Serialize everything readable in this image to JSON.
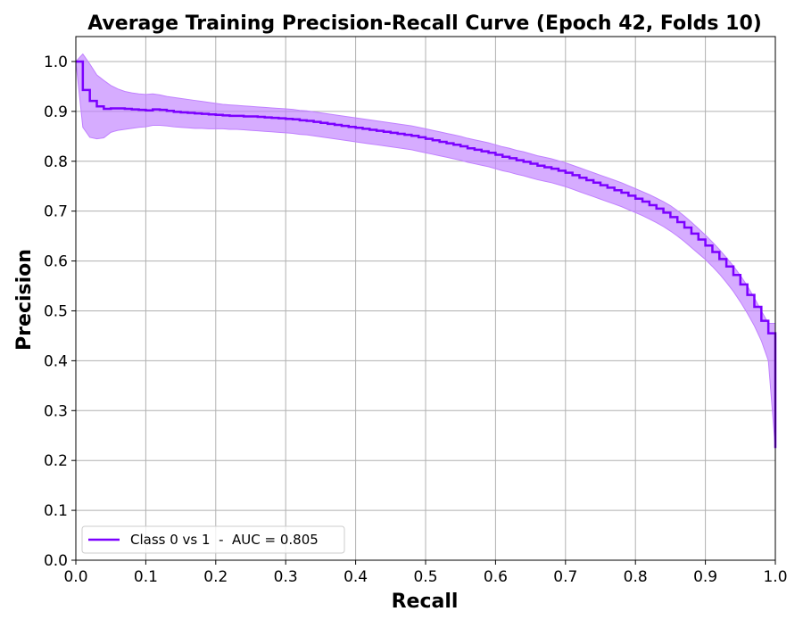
{
  "chart_data": {
    "type": "line",
    "title": "Average Training Precision-Recall Curve (Epoch 42, Folds 10)",
    "xlabel": "Recall",
    "ylabel": "Precision",
    "xlim": [
      0.0,
      1.0
    ],
    "ylim": [
      0.0,
      1.05
    ],
    "xticks": [
      0.0,
      0.1,
      0.2,
      0.3,
      0.4,
      0.5,
      0.6,
      0.7,
      0.8,
      0.9,
      1.0
    ],
    "yticks": [
      0.0,
      0.1,
      0.2,
      0.3,
      0.4,
      0.5,
      0.6,
      0.7,
      0.8,
      0.9,
      1.0
    ],
    "xtick_labels": [
      "0.0",
      "0.1",
      "0.2",
      "0.3",
      "0.4",
      "0.5",
      "0.6",
      "0.7",
      "0.8",
      "0.9",
      "1.0"
    ],
    "ytick_labels": [
      "0.0",
      "0.1",
      "0.2",
      "0.3",
      "0.4",
      "0.5",
      "0.6",
      "0.7",
      "0.8",
      "0.9",
      "1.0"
    ],
    "grid": true,
    "legend_position": "lower-left",
    "series": [
      {
        "name": "Class 0 vs 1  -  AUC = 0.805",
        "color": "#7b00ff",
        "band_color": "#c080ff",
        "step": true,
        "x": [
          0.0,
          0.01,
          0.02,
          0.03,
          0.04,
          0.05,
          0.06,
          0.07,
          0.08,
          0.09,
          0.1,
          0.11,
          0.12,
          0.13,
          0.14,
          0.15,
          0.16,
          0.17,
          0.18,
          0.19,
          0.2,
          0.21,
          0.22,
          0.23,
          0.24,
          0.25,
          0.26,
          0.27,
          0.28,
          0.29,
          0.3,
          0.31,
          0.32,
          0.33,
          0.34,
          0.35,
          0.36,
          0.37,
          0.38,
          0.39,
          0.4,
          0.41,
          0.42,
          0.43,
          0.44,
          0.45,
          0.46,
          0.47,
          0.48,
          0.49,
          0.5,
          0.51,
          0.52,
          0.53,
          0.54,
          0.55,
          0.56,
          0.57,
          0.58,
          0.59,
          0.6,
          0.61,
          0.62,
          0.63,
          0.64,
          0.65,
          0.66,
          0.67,
          0.68,
          0.69,
          0.7,
          0.71,
          0.72,
          0.73,
          0.74,
          0.75,
          0.76,
          0.77,
          0.78,
          0.79,
          0.8,
          0.81,
          0.82,
          0.83,
          0.84,
          0.85,
          0.86,
          0.87,
          0.88,
          0.89,
          0.9,
          0.91,
          0.92,
          0.93,
          0.94,
          0.95,
          0.96,
          0.97,
          0.98,
          0.99,
          1.0
        ],
        "y": [
          1.0,
          0.943,
          0.921,
          0.91,
          0.905,
          0.906,
          0.906,
          0.905,
          0.904,
          0.903,
          0.902,
          0.904,
          0.903,
          0.901,
          0.899,
          0.898,
          0.897,
          0.896,
          0.895,
          0.894,
          0.893,
          0.892,
          0.891,
          0.891,
          0.89,
          0.89,
          0.889,
          0.888,
          0.887,
          0.886,
          0.885,
          0.884,
          0.882,
          0.881,
          0.879,
          0.877,
          0.875,
          0.873,
          0.871,
          0.869,
          0.867,
          0.865,
          0.863,
          0.861,
          0.859,
          0.857,
          0.855,
          0.853,
          0.851,
          0.848,
          0.845,
          0.842,
          0.839,
          0.836,
          0.833,
          0.83,
          0.826,
          0.823,
          0.82,
          0.817,
          0.813,
          0.809,
          0.806,
          0.802,
          0.799,
          0.795,
          0.791,
          0.788,
          0.785,
          0.781,
          0.777,
          0.772,
          0.767,
          0.762,
          0.757,
          0.752,
          0.747,
          0.742,
          0.737,
          0.731,
          0.725,
          0.719,
          0.712,
          0.705,
          0.697,
          0.688,
          0.678,
          0.667,
          0.655,
          0.643,
          0.631,
          0.618,
          0.604,
          0.589,
          0.572,
          0.553,
          0.532,
          0.508,
          0.48,
          0.455,
          0.225
        ],
        "y_upper": [
          1.0,
          1.015,
          0.995,
          0.973,
          0.962,
          0.952,
          0.945,
          0.94,
          0.937,
          0.935,
          0.934,
          0.935,
          0.933,
          0.93,
          0.928,
          0.926,
          0.924,
          0.922,
          0.92,
          0.918,
          0.916,
          0.914,
          0.913,
          0.912,
          0.911,
          0.91,
          0.909,
          0.908,
          0.907,
          0.906,
          0.905,
          0.904,
          0.902,
          0.901,
          0.899,
          0.897,
          0.895,
          0.893,
          0.891,
          0.889,
          0.887,
          0.885,
          0.883,
          0.881,
          0.879,
          0.877,
          0.875,
          0.873,
          0.871,
          0.868,
          0.865,
          0.862,
          0.859,
          0.856,
          0.853,
          0.85,
          0.846,
          0.843,
          0.84,
          0.837,
          0.833,
          0.829,
          0.826,
          0.822,
          0.819,
          0.815,
          0.811,
          0.808,
          0.805,
          0.801,
          0.797,
          0.792,
          0.787,
          0.782,
          0.777,
          0.772,
          0.767,
          0.762,
          0.757,
          0.751,
          0.745,
          0.739,
          0.733,
          0.726,
          0.719,
          0.711,
          0.701,
          0.69,
          0.678,
          0.665,
          0.652,
          0.638,
          0.623,
          0.607,
          0.59,
          0.571,
          0.55,
          0.526,
          0.5,
          0.475,
          0.475
        ],
        "y_lower": [
          1.0,
          0.868,
          0.848,
          0.845,
          0.847,
          0.858,
          0.862,
          0.864,
          0.866,
          0.868,
          0.869,
          0.872,
          0.872,
          0.871,
          0.869,
          0.868,
          0.867,
          0.866,
          0.866,
          0.865,
          0.865,
          0.865,
          0.864,
          0.864,
          0.863,
          0.862,
          0.861,
          0.86,
          0.859,
          0.858,
          0.857,
          0.856,
          0.854,
          0.853,
          0.851,
          0.849,
          0.847,
          0.845,
          0.843,
          0.841,
          0.839,
          0.837,
          0.835,
          0.833,
          0.831,
          0.829,
          0.827,
          0.825,
          0.823,
          0.82,
          0.817,
          0.814,
          0.811,
          0.808,
          0.805,
          0.802,
          0.798,
          0.795,
          0.792,
          0.789,
          0.785,
          0.781,
          0.778,
          0.774,
          0.771,
          0.767,
          0.763,
          0.76,
          0.757,
          0.753,
          0.749,
          0.744,
          0.739,
          0.734,
          0.729,
          0.724,
          0.719,
          0.714,
          0.709,
          0.703,
          0.697,
          0.691,
          0.684,
          0.677,
          0.669,
          0.66,
          0.65,
          0.639,
          0.627,
          0.615,
          0.603,
          0.589,
          0.574,
          0.557,
          0.539,
          0.518,
          0.495,
          0.47,
          0.44,
          0.4,
          0.225
        ]
      }
    ]
  }
}
